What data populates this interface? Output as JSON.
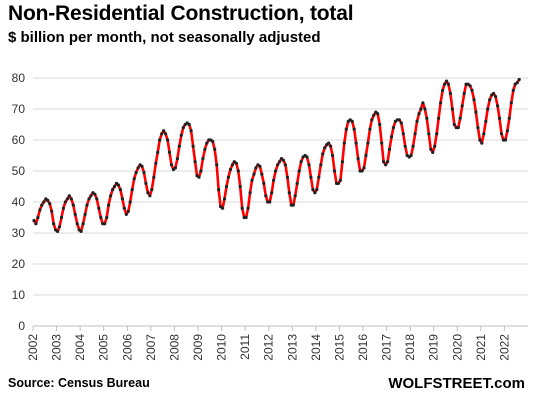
{
  "chart_data": {
    "type": "line",
    "title": "Non-Residential  Construction,  total",
    "subtitle": "$ billion per month, not seasonally adjusted",
    "source": "Source: Census Bureau",
    "brand": "WOLFSTREET.com",
    "ylim": [
      0,
      80
    ],
    "yticks": [
      0,
      10,
      20,
      30,
      40,
      50,
      60,
      70,
      80
    ],
    "xticks": [
      "2002",
      "2003",
      "2004",
      "2005",
      "2006",
      "2007",
      "2008",
      "2009",
      "2010",
      "2011",
      "2012",
      "2013",
      "2014",
      "2015",
      "2016",
      "2017",
      "2018",
      "2019",
      "2020",
      "2021",
      "2022"
    ],
    "grid": "horizontal",
    "line_color": "#ff0000",
    "marker_color": "#222222",
    "start": "2002-01",
    "series": [
      {
        "values": [
          34,
          33,
          35,
          37.5,
          39,
          40,
          41,
          40.5,
          39.5,
          37,
          33,
          31,
          30.5,
          32,
          35,
          38,
          40,
          41,
          42,
          41,
          39,
          36,
          33,
          31,
          30.5,
          33,
          36,
          39,
          41,
          42,
          43,
          42.5,
          41,
          38,
          35,
          33,
          33,
          35,
          39,
          42,
          44,
          45,
          46,
          45.5,
          44,
          41,
          38,
          36,
          37,
          40,
          44,
          47.5,
          49.5,
          51,
          52,
          51.5,
          49.5,
          46,
          43,
          42,
          44,
          48,
          52.5,
          56,
          60,
          62,
          63,
          62,
          60,
          56,
          52,
          50.5,
          51,
          54,
          58,
          61.5,
          64,
          65,
          65.5,
          65,
          63,
          58,
          53,
          48.5,
          48,
          50,
          54,
          57,
          59,
          60,
          60,
          59.5,
          57,
          52,
          44,
          38.5,
          38,
          41,
          45,
          48,
          50.5,
          52,
          53,
          52.5,
          50,
          45,
          38,
          35,
          35,
          38,
          43,
          47,
          49,
          51,
          52,
          51.5,
          49,
          46,
          42,
          40,
          40,
          43,
          47,
          50,
          52,
          53,
          54,
          53.5,
          52,
          48,
          43,
          39,
          39,
          42,
          46,
          50,
          53,
          54.5,
          55,
          54.5,
          52,
          48,
          44,
          43,
          44,
          48,
          52,
          55.5,
          57.5,
          58.5,
          59,
          58,
          55,
          50,
          46,
          46,
          47,
          53,
          59,
          63.5,
          66,
          66.5,
          66,
          63.5,
          59,
          54,
          50,
          50,
          51,
          55,
          59,
          63.5,
          66.5,
          68,
          69,
          68.5,
          65,
          59,
          53,
          52,
          53,
          57,
          61,
          64,
          66,
          66.5,
          66.5,
          65.5,
          62,
          58,
          55,
          54.5,
          55,
          58,
          62,
          66,
          68.5,
          70,
          72,
          70,
          67,
          62,
          57,
          56,
          58,
          62,
          67,
          72,
          76,
          78,
          79,
          78,
          75,
          70,
          65,
          64,
          64,
          67,
          71,
          75,
          78,
          78,
          77.5,
          76,
          73,
          69,
          64,
          60,
          59,
          62,
          66,
          70,
          73,
          74.5,
          75,
          74,
          71,
          67,
          62,
          60,
          60,
          63,
          67,
          72,
          76,
          78,
          78.5,
          79.5
        ]
      }
    ]
  }
}
